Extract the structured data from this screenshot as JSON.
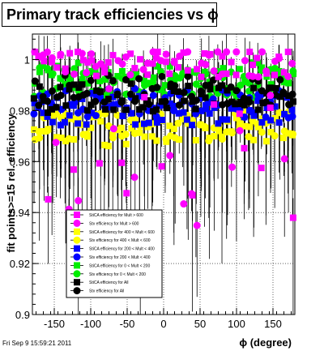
{
  "chart_data": {
    "type": "scatter",
    "title": "Primary track efficiencies vs ϕ",
    "xlabel": "ϕ (degree)",
    "ylabel": "fit points>=15 rel. efficiency",
    "xlim": [
      -180,
      180
    ],
    "ylim": [
      0.9,
      1.01
    ],
    "x_ticks": [
      -150,
      -100,
      -50,
      0,
      50,
      100,
      150
    ],
    "y_ticks": [
      0.9,
      0.92,
      0.94,
      0.96,
      0.98,
      1
    ],
    "grid": true,
    "legend_position": "bottom-left",
    "series": [
      {
        "name": "StiCA efficiency  for Mult > 600",
        "color": "#ff00ff",
        "marker": "square",
        "typical": 0.999
      },
      {
        "name": "Stv efficiency  for Mult > 600",
        "color": "#ff00ff",
        "marker": "circle",
        "typical": 0.999
      },
      {
        "name": "StiCA efficiency  for 400 < Mult < 600",
        "color": "#ffff00",
        "marker": "square",
        "typical": 0.972
      },
      {
        "name": "Stv efficiency  for 400 < Mult < 600",
        "color": "#ffff00",
        "marker": "circle",
        "typical": 0.974
      },
      {
        "name": "StiCA efficiency  for 200 < Mult < 400",
        "color": "#0000ff",
        "marker": "square",
        "typical": 0.98
      },
      {
        "name": "Stv efficiency  for 200 < Mult < 400",
        "color": "#0000ff",
        "marker": "circle",
        "typical": 0.983
      },
      {
        "name": "StiCA efficiency  for 0 < Mult < 200",
        "color": "#00ee00",
        "marker": "square",
        "typical": 0.993
      },
      {
        "name": "Stv efficiency  for 0 < Mult < 200",
        "color": "#00ee00",
        "marker": "circle",
        "typical": 0.991
      },
      {
        "name": "StiCA efficiency  for All",
        "color": "#000000",
        "marker": "square",
        "typical": 0.985
      },
      {
        "name": "Stv efficiency  for All",
        "color": "#000000",
        "marker": "circle",
        "typical": 0.988
      }
    ]
  },
  "footer": "Fri Sep  9 15:59:21 2011"
}
